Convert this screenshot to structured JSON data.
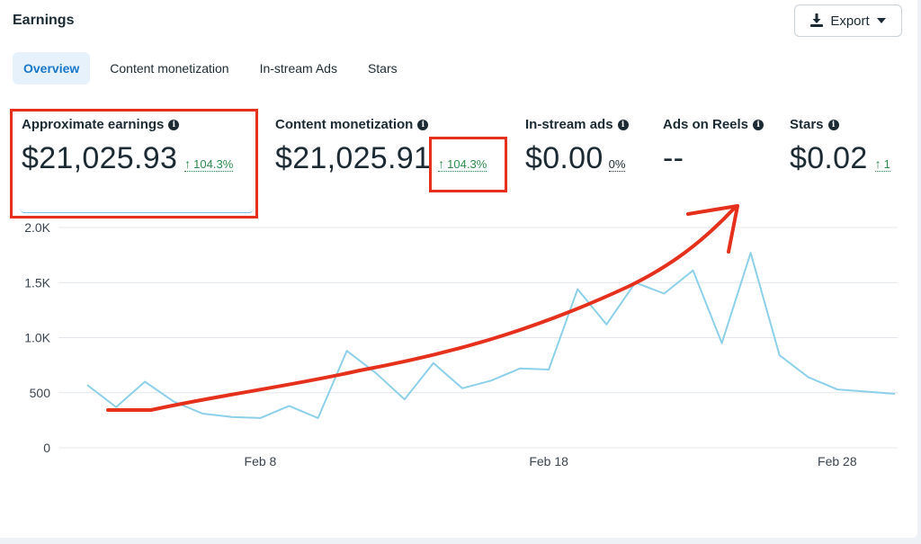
{
  "header": {
    "title": "Earnings",
    "export_label": "Export"
  },
  "tabs": [
    {
      "label": "Overview",
      "active": true
    },
    {
      "label": "Content monetization",
      "active": false
    },
    {
      "label": "In-stream Ads",
      "active": false
    },
    {
      "label": "Stars",
      "active": false
    }
  ],
  "metrics": [
    {
      "label": "Approximate earnings",
      "value": "$21,025.93",
      "change": "104.3%",
      "change_direction": "up"
    },
    {
      "label": "Content monetization",
      "value": "$21,025.91",
      "change": "104.3%",
      "change_direction": "up"
    },
    {
      "label": "In-stream ads",
      "value": "$0.00",
      "change": "0%",
      "change_direction": "none"
    },
    {
      "label": "Ads on Reels",
      "value": "--",
      "change": "",
      "change_direction": "none"
    },
    {
      "label": "Stars",
      "value": "$0.02",
      "change": "1",
      "change_direction": "up"
    }
  ],
  "colors": {
    "accent_tab": "#1877c8",
    "positive": "#2e8a4f",
    "series_line": "#8dd0ea",
    "annotation": "#e5301b"
  },
  "icons": {
    "export": "download-icon",
    "dropdown": "caret-down-icon",
    "info": "info-icon",
    "trend": "arrow-up-icon"
  },
  "chart_data": {
    "type": "line",
    "y_ticks": [
      "2.0K",
      "1.5K",
      "1.0K",
      "500",
      "0"
    ],
    "y_tick_values": [
      2000,
      1500,
      1000,
      500,
      0
    ],
    "ylim": [
      0,
      2000
    ],
    "x_tick_labels": [
      "Feb 8",
      "Feb 18",
      "Feb 28"
    ],
    "x_tick_days": [
      8,
      18,
      28
    ],
    "grid": true,
    "series": [
      {
        "x_days": [
          2,
          3,
          4,
          5,
          6,
          7,
          8,
          9,
          10,
          11,
          12,
          13,
          14,
          15,
          16,
          17,
          18,
          19,
          20,
          21,
          22,
          23,
          24,
          25,
          26,
          27,
          28,
          29,
          30
        ],
        "values": [
          570,
          370,
          600,
          420,
          310,
          280,
          270,
          380,
          270,
          880,
          680,
          440,
          770,
          540,
          610,
          720,
          710,
          1440,
          1120,
          1500,
          1400,
          1610,
          950,
          1770,
          840,
          640,
          530,
          510,
          490
        ]
      }
    ]
  }
}
